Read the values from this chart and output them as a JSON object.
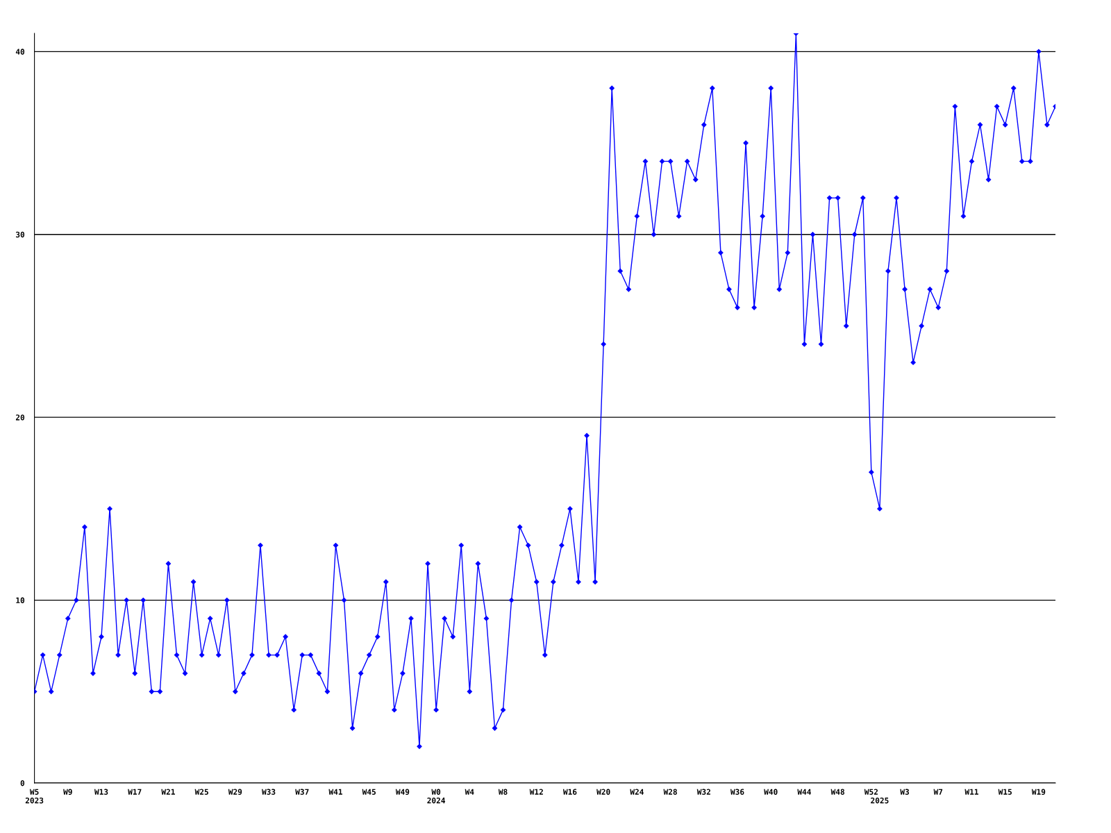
{
  "chart_data": {
    "type": "line",
    "categories": [
      "W5\n2023",
      null,
      null,
      null,
      "W9",
      null,
      null,
      null,
      "W13",
      null,
      null,
      null,
      "W17",
      null,
      null,
      null,
      "W21",
      null,
      null,
      null,
      "W25",
      null,
      null,
      null,
      "W29",
      null,
      null,
      null,
      "W33",
      null,
      null,
      null,
      "W37",
      null,
      null,
      null,
      "W41",
      null,
      null,
      null,
      "W45",
      null,
      null,
      null,
      "W49",
      null,
      null,
      null,
      "W0\n2024",
      null,
      null,
      null,
      "W4",
      null,
      null,
      null,
      "W8",
      null,
      null,
      null,
      "W12",
      null,
      null,
      null,
      "W16",
      null,
      null,
      null,
      "W20",
      null,
      null,
      null,
      "W24",
      null,
      null,
      null,
      "W28",
      null,
      null,
      null,
      "W32",
      null,
      null,
      null,
      "W36",
      null,
      null,
      null,
      "W40",
      null,
      null,
      null,
      "W44",
      null,
      null,
      null,
      "W48",
      null,
      null,
      null,
      "W52",
      "\n2025",
      null,
      null,
      "W3",
      null,
      null,
      null,
      "W7",
      null,
      null,
      null,
      "W11",
      null,
      null,
      null,
      "W15",
      null,
      null,
      null,
      "W19",
      null,
      null
    ],
    "series": [
      {
        "color": "#0000ff",
        "values": [
          5,
          7,
          5,
          7,
          9,
          10,
          14,
          6,
          8,
          15,
          7,
          10,
          6,
          10,
          5,
          5,
          12,
          7,
          6,
          11,
          7,
          9,
          7,
          10,
          5,
          6,
          7,
          13,
          7,
          7,
          8,
          4,
          7,
          7,
          6,
          5,
          13,
          10,
          3,
          6,
          7,
          8,
          11,
          4,
          6,
          9,
          2,
          12,
          4,
          9,
          8,
          13,
          5,
          12,
          9,
          3,
          4,
          10,
          14,
          13,
          11,
          7,
          11,
          13,
          15,
          11,
          19,
          11,
          24,
          38,
          28,
          27,
          31,
          34,
          30,
          34,
          34,
          31,
          34,
          33,
          36,
          38,
          29,
          27,
          26,
          35,
          26,
          31,
          38,
          27,
          29,
          41,
          24,
          30,
          24,
          32,
          32,
          25,
          30,
          32,
          17,
          15,
          28,
          32,
          27,
          23,
          25,
          27,
          26,
          28,
          37,
          31,
          34,
          36,
          33,
          37,
          36,
          38,
          34,
          34,
          40,
          36,
          37
        ]
      }
    ],
    "ylim": [
      0,
      41
    ],
    "yticks": [
      0,
      10,
      20,
      30,
      40
    ],
    "grid": "y",
    "marker": "diamond",
    "line_style": "solid",
    "legend": false
  }
}
